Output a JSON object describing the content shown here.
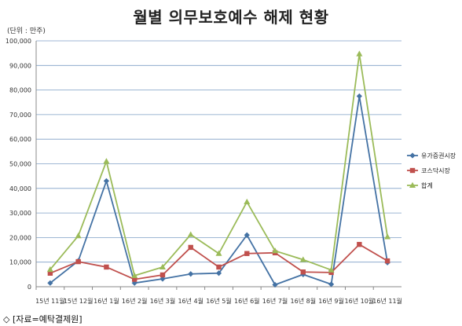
{
  "title": "월별 의무보호예수 해제 현황",
  "unit_label": "(단위 : 만주)",
  "source_note": "◇ [자료=예탁결제원]",
  "chart_data": {
    "type": "line",
    "title": "월별 의무보호예수 해제 현황",
    "ylabel": "(단위 : 만주)",
    "ylim": [
      0,
      100000
    ],
    "yticks": [
      "0",
      "10,000",
      "20,000",
      "30,000",
      "40,000",
      "50,000",
      "60,000",
      "70,000",
      "80,000",
      "90,000",
      "100,000"
    ],
    "categories": [
      "15년 11월",
      "15년 12월",
      "16년 1월",
      "16년 2월",
      "16년 3월",
      "16년 4월",
      "16년 5월",
      "16년 6월",
      "16년 7월",
      "16년 8월",
      "16년 9월",
      "16년 10월",
      "16년 11월"
    ],
    "grid": true,
    "legend_position": "right",
    "series": [
      {
        "name": "유가증권시장",
        "color": "#4472a4",
        "marker": "diamond",
        "values": [
          1500,
          10500,
          43000,
          1500,
          3200,
          5200,
          5500,
          21000,
          800,
          5000,
          1000,
          77500,
          9800
        ]
      },
      {
        "name": "코스닥시장",
        "color": "#c0504d",
        "marker": "square",
        "values": [
          5500,
          10200,
          8000,
          3000,
          4800,
          16000,
          8000,
          13500,
          13800,
          6000,
          5800,
          17200,
          10500
        ]
      },
      {
        "name": "합계",
        "color": "#9bbb59",
        "marker": "triangle",
        "values": [
          7000,
          20700,
          51000,
          4500,
          8000,
          21200,
          13500,
          34500,
          14600,
          11000,
          6800,
          94700,
          20300
        ]
      }
    ]
  }
}
